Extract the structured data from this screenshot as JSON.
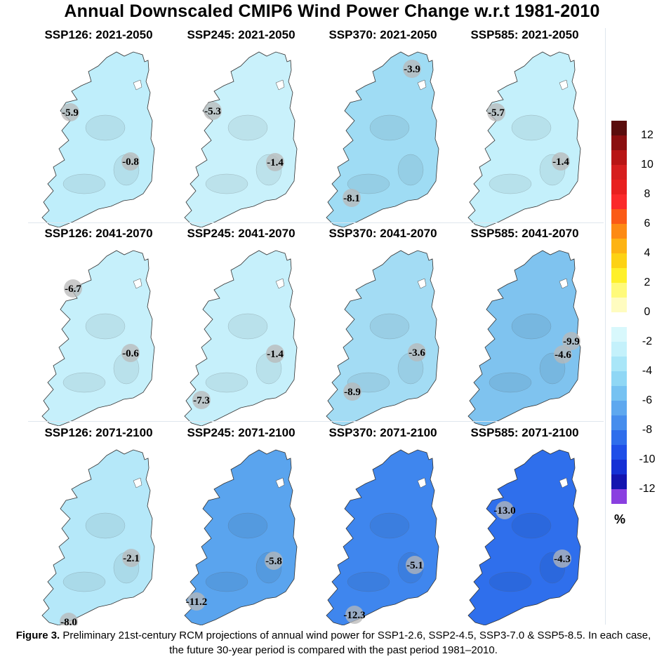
{
  "title": "Annual Downscaled CMIP6 Wind Power Change w.r.t 1981-2010",
  "panels": [
    {
      "title": "SSP126: 2021-2050",
      "fill": "#bfeefb",
      "labels": [
        {
          "text": "-5.9"
        },
        {
          "text": "-0.8"
        }
      ]
    },
    {
      "title": "SSP245: 2021-2050",
      "fill": "#c9f1fb",
      "labels": [
        {
          "text": "-5.3"
        },
        {
          "text": "-1.4"
        }
      ]
    },
    {
      "title": "SSP370: 2021-2050",
      "fill": "#9fdcf4",
      "labels": [
        {
          "text": "-3.9"
        },
        {
          "text": "-8.1"
        }
      ]
    },
    {
      "title": "SSP585: 2021-2050",
      "fill": "#c4f0fb",
      "labels": [
        {
          "text": "-5.7"
        },
        {
          "text": "-1.4"
        }
      ]
    },
    {
      "title": "SSP126: 2041-2070",
      "fill": "#c6f0fb",
      "labels": [
        {
          "text": "-6.7"
        },
        {
          "text": "-0.6"
        }
      ]
    },
    {
      "title": "SSP245: 2041-2070",
      "fill": "#c6f0fb",
      "labels": [
        {
          "text": "-1.4"
        },
        {
          "text": "-7.3"
        }
      ]
    },
    {
      "title": "SSP370: 2041-2070",
      "fill": "#a3dcf4",
      "labels": [
        {
          "text": "-3.6"
        },
        {
          "text": "-8.9"
        }
      ]
    },
    {
      "title": "SSP585: 2041-2070",
      "fill": "#7fc3ef",
      "labels": [
        {
          "text": "-9.9"
        },
        {
          "text": "-4.6"
        }
      ]
    },
    {
      "title": "SSP126: 2071-2100",
      "fill": "#b5e8f9",
      "labels": [
        {
          "text": "-2.1"
        },
        {
          "text": "-8.0"
        }
      ]
    },
    {
      "title": "SSP245: 2071-2100",
      "fill": "#5aa4ee",
      "labels": [
        {
          "text": "-5.8"
        },
        {
          "text": "-11.2"
        }
      ]
    },
    {
      "title": "SSP370: 2071-2100",
      "fill": "#3f86ee",
      "labels": [
        {
          "text": "-5.1"
        },
        {
          "text": "-12.3"
        }
      ]
    },
    {
      "title": "SSP585: 2071-2100",
      "fill": "#2f6fec",
      "labels": [
        {
          "text": "-13.0"
        },
        {
          "text": "-4.3"
        }
      ]
    }
  ],
  "legend": {
    "unit": "%",
    "ticks": [
      "12",
      "10",
      "8",
      "6",
      "4",
      "2",
      "0",
      "-2",
      "-4",
      "-6",
      "-8",
      "-10",
      "-12"
    ],
    "colors": [
      "#5a0d0d",
      "#8b0f10",
      "#b81515",
      "#d61e1e",
      "#e8201f",
      "#fb2a2a",
      "#fb5a16",
      "#fd8a13",
      "#fdb313",
      "#fdd214",
      "#fef02a",
      "#fffa7a",
      "#fffcc0",
      "#ffffff",
      "#d8f8fc",
      "#c4f1fb",
      "#a9e6f8",
      "#8fd7f5",
      "#76c2f2",
      "#5ea8ef",
      "#468ded",
      "#2f6eec",
      "#1f4fe8",
      "#1530d5",
      "#1414b0",
      "#8a3fe0"
    ]
  },
  "caption": {
    "label": "Figure 3.",
    "text": " Preliminary 21st-century RCM projections of annual wind power for SSP1-2.6, SSP2-4.5, SSP3-7.0 & SSP5-8.5. In each case, the future 30-year period is compared with the past period 1981–2010."
  }
}
